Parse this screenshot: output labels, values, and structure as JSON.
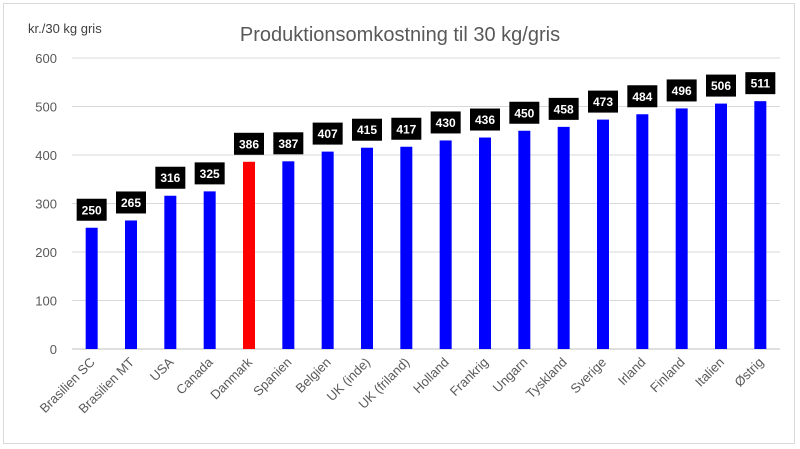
{
  "chart_data": {
    "type": "bar",
    "title": "Produktionsomkostning til 30 kg/gris",
    "ylabel": "kr./30 kg gris",
    "xlabel": "",
    "ylim": [
      0,
      600
    ],
    "yticks": [
      0,
      100,
      200,
      300,
      400,
      500,
      600
    ],
    "grid": true,
    "legend": "none",
    "categories": [
      "Brasilien SC",
      "Brasilien MT",
      "USA",
      "Canada",
      "Danmark",
      "Spanien",
      "Belgien",
      "UK (inde)",
      "UK (friland)",
      "Holland",
      "Frankrig",
      "Ungarn",
      "Tyskland",
      "Sverige",
      "Irland",
      "Finland",
      "Italien",
      "Østrig"
    ],
    "values": [
      250,
      265,
      316,
      325,
      386,
      387,
      407,
      415,
      417,
      430,
      436,
      450,
      458,
      473,
      484,
      496,
      506,
      511
    ],
    "bar_color": "#0000ff",
    "highlight_color": "#ff0000",
    "highlight_category": "Danmark",
    "label_bg_color": "#000000",
    "label_text_color": "#ffffff"
  }
}
